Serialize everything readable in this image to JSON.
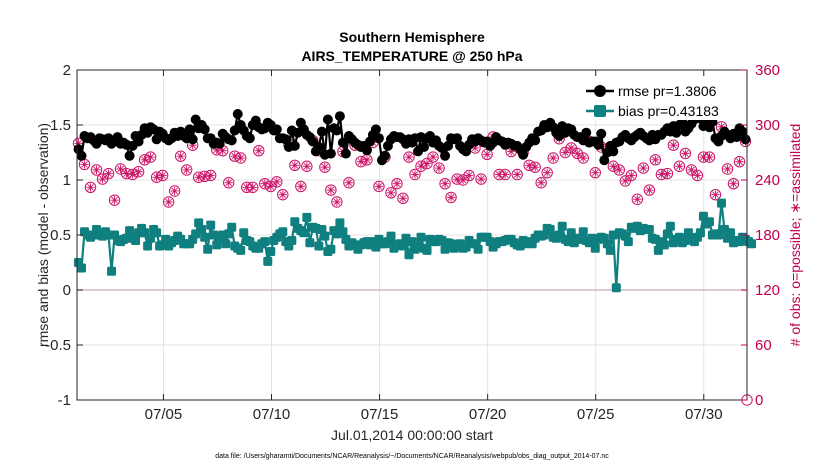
{
  "chart_data": {
    "type": "line",
    "title": [
      "Southern Hemisphere",
      "AIRS_TEMPERATURE @ 250 hPa"
    ],
    "xlabel": "Jul.01,2014 00:00:00 start",
    "ylabel_left": "rmse and bias (model - observation)",
    "ylabel_right": "# of obs: o=possible; ∗=assimilated",
    "footnote": "data file: /Users/gharamti/Documents/NCAR/Reanalysis/~/Documents/NCAR/Reanalysis/webpub/obs_diag_output_2014-07.nc",
    "x_range": [
      1.0,
      32.0
    ],
    "ylim_left": [
      -1,
      2
    ],
    "ylim_right": [
      0,
      360
    ],
    "xticks": [
      5,
      10,
      15,
      20,
      25,
      30
    ],
    "xtick_labels": [
      "07/05",
      "07/10",
      "07/15",
      "07/20",
      "07/25",
      "07/30"
    ],
    "yticks_left": [
      -1,
      -0.5,
      0,
      0.5,
      1,
      1.5,
      2
    ],
    "ytick_labels_left": [
      "-1",
      "-0.5",
      "0",
      "0.5",
      "1",
      "1.5",
      "2"
    ],
    "yticks_right": [
      0,
      60,
      120,
      180,
      240,
      300,
      360
    ],
    "ytick_labels_right": [
      "0",
      "60",
      "120",
      "180",
      "240",
      "300",
      "360"
    ],
    "grid": true,
    "legend_position": "top-right",
    "colors": {
      "rmse": "#000000",
      "bias": "#0f7f7f",
      "obs": "#cc1166",
      "zero_line": "#d9b8bf"
    },
    "series": [
      {
        "name": "rmse pr=1.3806",
        "axis": "left",
        "values": [
          1.28,
          1.22,
          1.4,
          1.38,
          1.39,
          1.36,
          1.33,
          1.38,
          1.37,
          1.36,
          1.38,
          1.33,
          1.35,
          1.39,
          1.33,
          1.34,
          1.32,
          1.22,
          1.31,
          1.4,
          1.35,
          1.41,
          1.47,
          1.43,
          1.48,
          1.46,
          1.37,
          1.44,
          1.42,
          1.38,
          1.36,
          1.38,
          1.43,
          1.4,
          1.44,
          1.4,
          1.38,
          1.46,
          1.37,
          1.55,
          1.47,
          1.5,
          1.46,
          1.38,
          1.38,
          1.33,
          1.34,
          1.33,
          1.42,
          1.39,
          1.37,
          1.36,
          1.45,
          1.6,
          1.5,
          1.45,
          1.4,
          1.38,
          1.5,
          1.54,
          1.48,
          1.46,
          1.47,
          1.52,
          1.5,
          1.45,
          1.46,
          1.38,
          1.38,
          1.37,
          1.3,
          1.45,
          1.31,
          1.43,
          1.52,
          1.46,
          1.41,
          1.39,
          1.35,
          1.26,
          1.3,
          1.44,
          1.23,
          1.55,
          1.24,
          1.47,
          1.45,
          1.58,
          1.34,
          1.24,
          1.4,
          1.37,
          1.34,
          1.32,
          1.3,
          1.31,
          1.27,
          1.35,
          1.41,
          1.46,
          1.38,
          1.18,
          1.22,
          1.31,
          1.37,
          1.4,
          1.39,
          1.39,
          1.37,
          1.33,
          1.37,
          1.34,
          1.38,
          1.26,
          1.39,
          1.3,
          1.38,
          1.4,
          1.34,
          1.36,
          1.31,
          1.29,
          1.22,
          1.31,
          1.38,
          1.37,
          1.38,
          1.31,
          1.28,
          1.26,
          1.32,
          1.37,
          1.35,
          1.38,
          1.36,
          1.34,
          1.35,
          1.31,
          1.34,
          1.39,
          1.36,
          1.35,
          1.32,
          1.34,
          1.33,
          1.31,
          1.31,
          1.28,
          1.23,
          1.3,
          1.34,
          1.38,
          1.36,
          1.44,
          1.45,
          1.5,
          1.48,
          1.52,
          1.48,
          1.43,
          1.4,
          1.49,
          1.43,
          1.47,
          1.46,
          1.41,
          1.39,
          1.39,
          1.36,
          1.43,
          1.34,
          1.35,
          1.35,
          1.32,
          1.42,
          1.18,
          1.25,
          1.31,
          1.26,
          1.34,
          1.35,
          1.39,
          1.41,
          1.38,
          1.36,
          1.39,
          1.41,
          1.43,
          1.4,
          1.38,
          1.36,
          1.41,
          1.37,
          1.41,
          1.41,
          1.44,
          1.47,
          1.44,
          1.49,
          1.43,
          1.5,
          1.53,
          1.44,
          1.47,
          1.51,
          1.55,
          1.57,
          1.56,
          1.49,
          1.52,
          1.48,
          1.53,
          1.38,
          1.35,
          1.4,
          1.44,
          1.41,
          1.38,
          1.42,
          1.39,
          1.47,
          1.44,
          1.37
        ]
      },
      {
        "name": "bias pr=0.43183",
        "axis": "left",
        "values": [
          0.25,
          0.2,
          0.53,
          0.5,
          0.48,
          0.5,
          0.55,
          0.5,
          0.49,
          0.53,
          0.5,
          0.17,
          0.5,
          0.45,
          0.44,
          0.46,
          0.47,
          0.54,
          0.47,
          0.45,
          0.52,
          0.56,
          0.52,
          0.4,
          0.47,
          0.55,
          0.52,
          0.4,
          0.41,
          0.46,
          0.4,
          0.43,
          0.45,
          0.49,
          0.46,
          0.42,
          0.42,
          0.42,
          0.46,
          0.51,
          0.61,
          0.55,
          0.48,
          0.37,
          0.59,
          0.5,
          0.41,
          0.48,
          0.5,
          0.42,
          0.51,
          0.57,
          0.4,
          0.38,
          0.36,
          0.52,
          0.45,
          0.44,
          0.4,
          0.38,
          0.38,
          0.42,
          0.44,
          0.26,
          0.35,
          0.45,
          0.48,
          0.51,
          0.53,
          0.44,
          0.4,
          0.45,
          0.62,
          0.56,
          0.54,
          0.52,
          0.66,
          0.43,
          0.57,
          0.56,
          0.4,
          0.55,
          0.49,
          0.35,
          0.37,
          0.54,
          0.51,
          0.61,
          0.53,
          0.46,
          0.4,
          0.43,
          0.41,
          0.37,
          0.41,
          0.43,
          0.44,
          0.41,
          0.44,
          0.39,
          0.46,
          0.42,
          0.42,
          0.44,
          0.49,
          0.38,
          0.41,
          0.42,
          0.4,
          0.47,
          0.32,
          0.44,
          0.37,
          0.4,
          0.48,
          0.38,
          0.36,
          0.46,
          0.44,
          0.44,
          0.46,
          0.45,
          0.37,
          0.43,
          0.42,
          0.38,
          0.4,
          0.42,
          0.38,
          0.39,
          0.45,
          0.42,
          0.42,
          0.37,
          0.48,
          0.48,
          0.48,
          0.44,
          0.39,
          0.42,
          0.44,
          0.44,
          0.45,
          0.46,
          0.46,
          0.43,
          0.41,
          0.4,
          0.45,
          0.42,
          0.44,
          0.42,
          0.47,
          0.5,
          0.49,
          0.5,
          0.56,
          0.55,
          0.48,
          0.47,
          0.5,
          0.58,
          0.46,
          0.44,
          0.52,
          0.43,
          0.47,
          0.46,
          0.53,
          0.45,
          0.43,
          0.47,
          0.38,
          0.46,
          0.48,
          0.47,
          0.42,
          0.36,
          0.5,
          0.02,
          0.52,
          0.51,
          0.49,
          0.44,
          0.57,
          0.56,
          0.58,
          0.54,
          0.56,
          0.55,
          0.55,
          0.47,
          0.46,
          0.36,
          0.44,
          0.41,
          0.51,
          0.58,
          0.43,
          0.46,
          0.48,
          0.43,
          0.45,
          0.52,
          0.47,
          0.44,
          0.48,
          0.52,
          0.67,
          0.6,
          0.62,
          0.5,
          0.51,
          0.5,
          0.79,
          0.55,
          0.47,
          0.52,
          0.43,
          0.45,
          0.44,
          0.48,
          0.46,
          0.44,
          0.42
        ]
      },
      {
        "name": "possible obs",
        "axis": "right",
        "marker": "o",
        "values": [
          280,
          262,
          257,
          238,
          232,
          262,
          251,
          234,
          241,
          256,
          247,
          238,
          218,
          244,
          252,
          257,
          247,
          258,
          246,
          240,
          249,
          237,
          262,
          279,
          265,
          252,
          243,
          282,
          245,
          233,
          216,
          253,
          228,
          263,
          266,
          239,
          251,
          251,
          278,
          274,
          243,
          252,
          244,
          207,
          245,
          274,
          273,
          244,
          272,
          299,
          237,
          248,
          266,
          242,
          264,
          241,
          232,
          257,
          232,
          227,
          272,
          292,
          236,
          255,
          233,
          238,
          238,
          276,
          224,
          263,
          279,
          266,
          256,
          241,
          233,
          211,
          255,
          249,
          283,
          286,
          272,
          274,
          254,
          236,
          229,
          260,
          216,
          254,
          271,
          231,
          237,
          244,
          278,
          297,
          260,
          241,
          262,
          299,
          281,
          268,
          233,
          297,
          265,
          250,
          226,
          244,
          236,
          231,
          220,
          281,
          265,
          233,
          246,
          209,
          255,
          235,
          258,
          220,
          265,
          255,
          253,
          281,
          236,
          256,
          221,
          229,
          241,
          240,
          240,
          263,
          245,
          254,
          275,
          236,
          241,
          285,
          268,
          262,
          287,
          241,
          246,
          274,
          246,
          272,
          271,
          237,
          246,
          259,
          270,
          229,
          256,
          245,
          254,
          245,
          237,
          227,
          248,
          257,
          264,
          244,
          285,
          281,
          270,
          238,
          275,
          271,
          269,
          290,
          264,
          257,
          282,
          236,
          248,
          235,
          276,
          230,
          274,
          263,
          255,
          252,
          251,
          287,
          239,
          226,
          245,
          252,
          219,
          272,
          253,
          250,
          229,
          228,
          262,
          213,
          246,
          215,
          247,
          243,
          278,
          261,
          255,
          219,
          269,
          254,
          251,
          294,
          245,
          267,
          265,
          279,
          265,
          216,
          224,
          240,
          298,
          273,
          252,
          245,
          236,
          226,
          260,
          240,
          282,
          256
        ]
      },
      {
        "name": "assimilated obs",
        "axis": "right",
        "marker": "*",
        "values": [
          280,
          262,
          257,
          238,
          232,
          262,
          251,
          234,
          241,
          256,
          247,
          238,
          218,
          244,
          252,
          257,
          247,
          258,
          246,
          240,
          249,
          237,
          262,
          279,
          265,
          252,
          243,
          282,
          245,
          233,
          216,
          253,
          228,
          263,
          266,
          239,
          251,
          251,
          278,
          274,
          243,
          252,
          244,
          207,
          245,
          274,
          273,
          244,
          272,
          299,
          237,
          248,
          266,
          242,
          264,
          241,
          232,
          257,
          232,
          227,
          272,
          292,
          236,
          255,
          233,
          238,
          238,
          276,
          224,
          263,
          279,
          266,
          256,
          241,
          233,
          211,
          255,
          249,
          283,
          286,
          272,
          274,
          254,
          236,
          229,
          260,
          216,
          254,
          271,
          231,
          237,
          244,
          278,
          297,
          260,
          241,
          262,
          299,
          281,
          268,
          233,
          297,
          265,
          250,
          226,
          244,
          236,
          231,
          220,
          281,
          265,
          233,
          246,
          209,
          255,
          235,
          258,
          220,
          265,
          255,
          253,
          281,
          236,
          256,
          221,
          229,
          241,
          240,
          240,
          263,
          245,
          254,
          275,
          236,
          241,
          285,
          268,
          262,
          287,
          241,
          246,
          274,
          246,
          272,
          271,
          237,
          246,
          259,
          270,
          229,
          256,
          245,
          254,
          245,
          237,
          227,
          248,
          257,
          264,
          244,
          285,
          281,
          270,
          238,
          275,
          271,
          269,
          290,
          264,
          257,
          282,
          236,
          248,
          235,
          276,
          230,
          274,
          263,
          255,
          252,
          251,
          287,
          239,
          226,
          245,
          252,
          219,
          272,
          253,
          250,
          229,
          228,
          262,
          213,
          246,
          215,
          247,
          243,
          278,
          261,
          255,
          219,
          269,
          254,
          251,
          294,
          245,
          267,
          265,
          279,
          265,
          216,
          224,
          240,
          298,
          273,
          252,
          245,
          236,
          226,
          260,
          240,
          282,
          256
        ]
      }
    ]
  }
}
